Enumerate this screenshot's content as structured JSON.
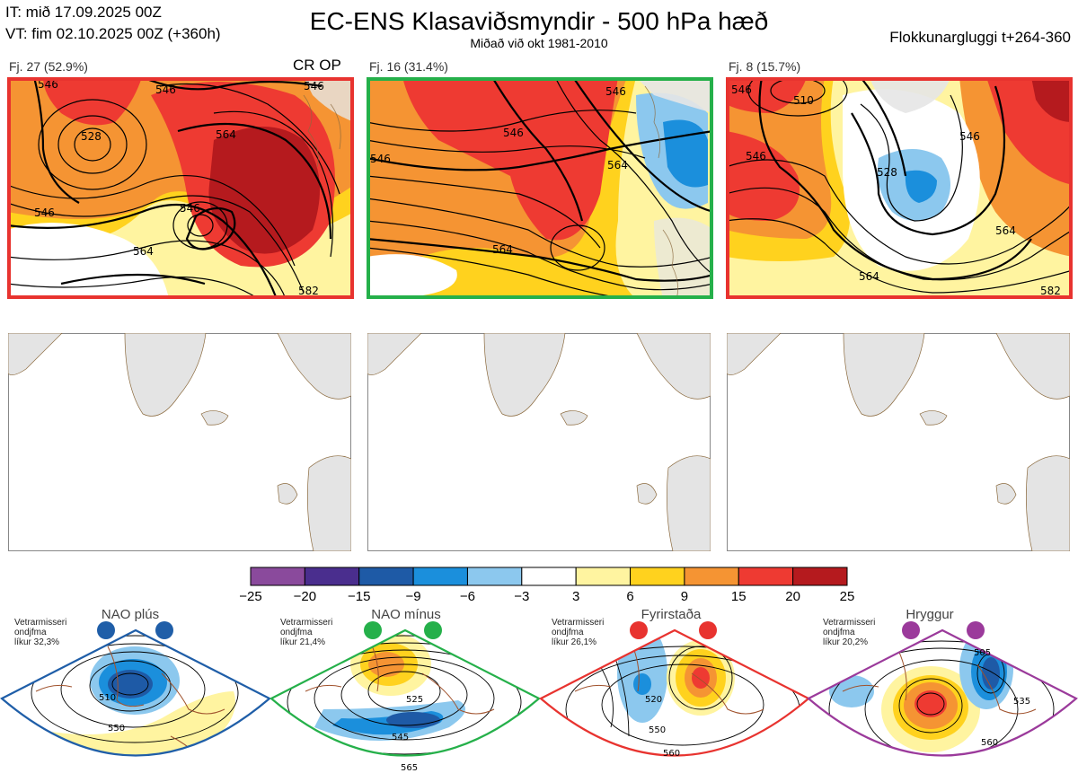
{
  "header": {
    "init_time": "IT: mið 17.09.2025 00Z",
    "valid_time": "VT: fim 02.10.2025 00Z  (+360h)",
    "title": "EC-ENS Klasaviðsmyndir - 500 hPa hæð",
    "subtitle": "Miðað við okt 1981-2010",
    "window": "Flokkunargluggi t+264-360"
  },
  "clusters": [
    {
      "label": "Fj. 27 (52.9%)",
      "tag": "CR OP",
      "border_color": "#e8332f",
      "contours": [
        "546",
        "546",
        "546",
        "528",
        "546",
        "564",
        "564",
        "546",
        "582"
      ]
    },
    {
      "label": "Fj. 16 (31.4%)",
      "tag": "",
      "border_color": "#25b04a",
      "contours": [
        "546",
        "546",
        "564",
        "546",
        "564"
      ]
    },
    {
      "label": "Fj. 8 (15.7%)",
      "tag": "",
      "border_color": "#e8332f",
      "contours": [
        "510",
        "546",
        "528",
        "546",
        "546",
        "564",
        "564",
        "582"
      ]
    }
  ],
  "colorbar": {
    "ticks": [
      "−25",
      "−20",
      "−15",
      "−9",
      "−6",
      "−3",
      "3",
      "6",
      "9",
      "15",
      "20",
      "25"
    ],
    "colors": [
      "#8a4a9c",
      "#4a2e8e",
      "#1e5aa6",
      "#1b8fdc",
      "#8cc8ee",
      "#ffffff",
      "#fff4a0",
      "#ffd21e",
      "#f59433",
      "#ee3a32",
      "#b51a1e"
    ]
  },
  "regimes": [
    {
      "name": "NAO plús",
      "color": "#1f5ea8",
      "note": [
        "Vetrarmisseri",
        "ondjfma",
        "líkur 32,3%"
      ],
      "contours": [
        "510",
        "550"
      ]
    },
    {
      "name": "NAO mínus",
      "color": "#25b04a",
      "note": [
        "Vetrarmisseri",
        "ondjfma",
        "líkur 21,4%"
      ],
      "contours": [
        "525",
        "545",
        "565"
      ]
    },
    {
      "name": "Fyrirstaða",
      "color": "#e8332f",
      "note": [
        "Vetrarmisseri",
        "ondjfma",
        "líkur 26,1%"
      ],
      "contours": [
        "520",
        "550",
        "560"
      ]
    },
    {
      "name": "Hryggur",
      "color": "#9b3a9b",
      "note": [
        "Vetrarmisseri",
        "ondjfma",
        "líkur 20,2%"
      ],
      "contours": [
        "505",
        "535",
        "560"
      ]
    }
  ]
}
